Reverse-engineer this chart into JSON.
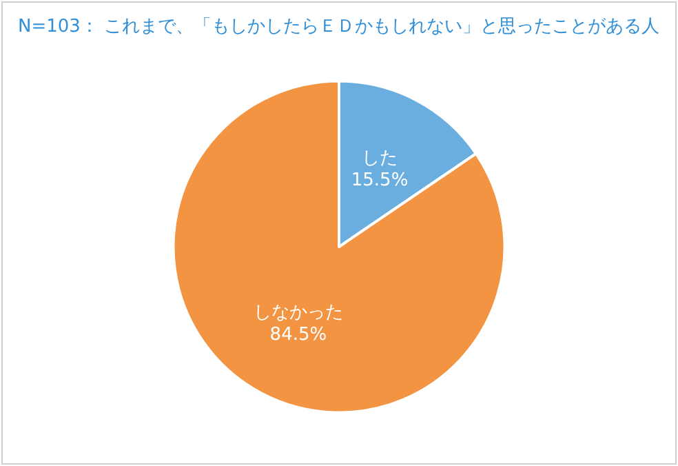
{
  "chart_data": {
    "type": "pie",
    "title": "N=103： これまで、「もしかしたらＥＤかもしれない」と思ったことがある人",
    "categories": [
      "した",
      "しなかった"
    ],
    "values": [
      15.5,
      84.5
    ],
    "colors": [
      "#6aaee0",
      "#f39443"
    ],
    "value_labels": [
      "15.5%",
      "84.5%"
    ],
    "legend": false
  }
}
